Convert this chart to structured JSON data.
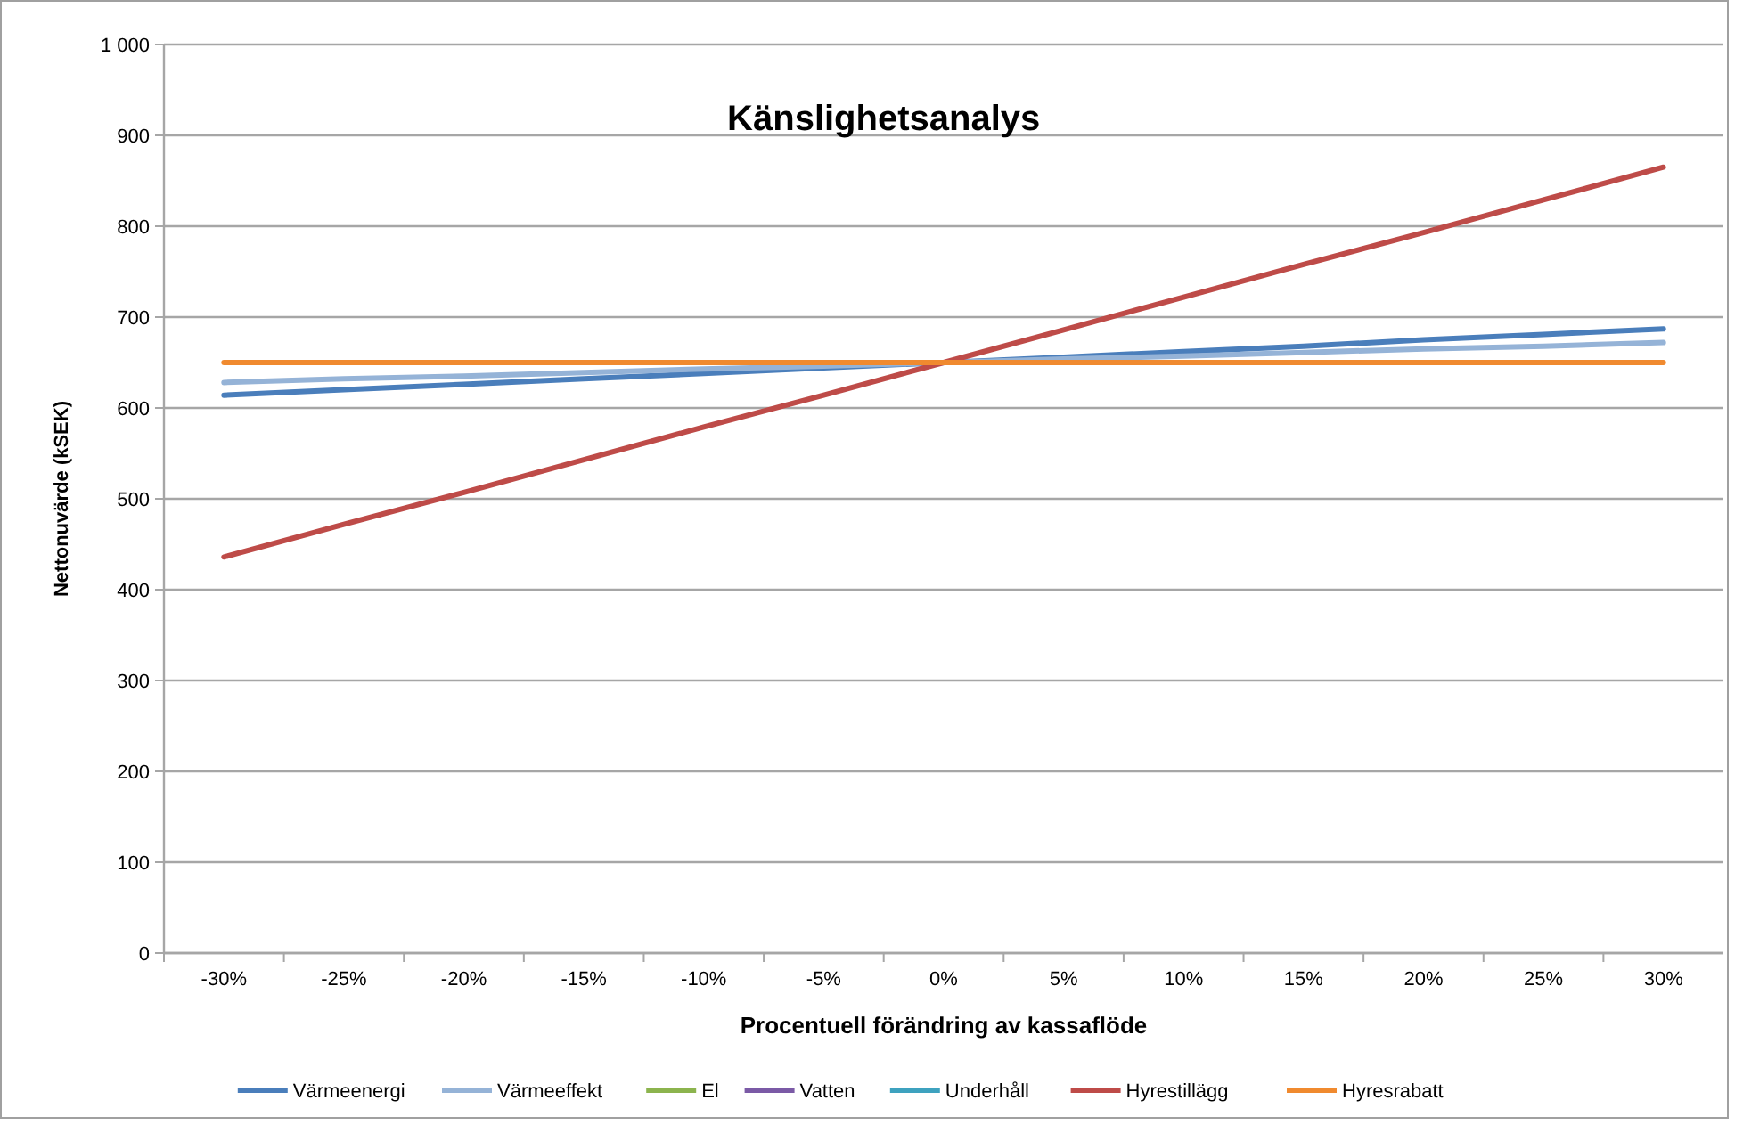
{
  "chart_data": {
    "type": "line",
    "title": "Känslighetsanalys",
    "xlabel": "Procentuell förändring av kassaflöde",
    "ylabel": "Nettonuvärde (kSEK)",
    "categories": [
      "-30%",
      "-25%",
      "-20%",
      "-15%",
      "-10%",
      "-5%",
      "0%",
      "5%",
      "10%",
      "15%",
      "20%",
      "25%",
      "30%"
    ],
    "ylim": [
      0,
      1000
    ],
    "yticks": [
      0,
      100,
      200,
      300,
      400,
      500,
      600,
      700,
      800,
      900,
      {
        "value": 1000,
        "label": "1 000"
      }
    ],
    "grid": "y",
    "legend": "bottom",
    "marker": "none",
    "line_style": "solid",
    "series": [
      {
        "name": "Värmeenergi",
        "color": "#4a7ebb",
        "values": [
          614,
          620,
          626,
          632,
          638,
          644,
          null,
          656,
          662,
          668,
          675,
          681,
          687
        ]
      },
      {
        "name": "Värmeeffekt",
        "color": "#95b3d7",
        "values": [
          628,
          632,
          635,
          639,
          643,
          646,
          null,
          654,
          657,
          661,
          665,
          668,
          672
        ]
      },
      {
        "name": "El",
        "color": "#8cb44e",
        "values": [
          null,
          null,
          null,
          null,
          null,
          null,
          null,
          null,
          null,
          null,
          null,
          null,
          null
        ]
      },
      {
        "name": "Vatten",
        "color": "#7b5aa6",
        "values": [
          null,
          null,
          null,
          null,
          null,
          null,
          null,
          null,
          null,
          null,
          null,
          null,
          null
        ]
      },
      {
        "name": "Underhåll",
        "color": "#3ea2bf",
        "values": [
          null,
          null,
          null,
          null,
          null,
          null,
          null,
          null,
          null,
          null,
          null,
          null,
          null
        ]
      },
      {
        "name": "Hyrestillägg",
        "color": "#be4b48",
        "values": [
          436,
          472,
          507,
          543,
          579,
          614,
          650,
          686,
          722,
          758,
          793,
          829,
          865
        ]
      },
      {
        "name": "Hyresrabatt",
        "color": "#f08a2f",
        "values": [
          650,
          650,
          650,
          650,
          650,
          650,
          650,
          650,
          650,
          650,
          650,
          650,
          650
        ]
      }
    ]
  }
}
